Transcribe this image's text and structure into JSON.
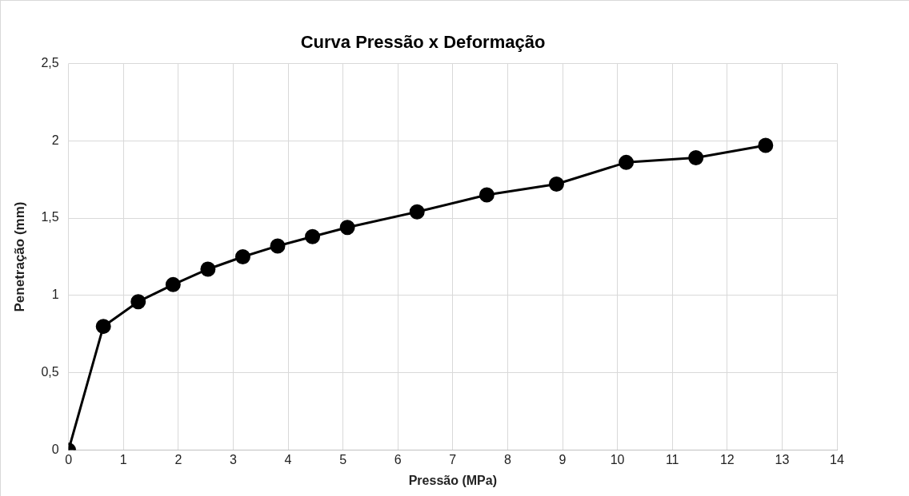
{
  "chart_data": {
    "type": "line",
    "title": "Curva Pressão x Deformação",
    "xlabel": "Pressão (MPa)",
    "ylabel": "Penetração (mm)",
    "x": [
      0,
      0.635,
      1.27,
      1.905,
      2.54,
      3.175,
      3.81,
      4.445,
      5.08,
      6.35,
      7.62,
      8.89,
      10.16,
      11.43,
      12.7
    ],
    "series": [
      {
        "color": "#000000",
        "values": [
          0,
          0.8,
          0.96,
          1.07,
          1.17,
          1.25,
          1.32,
          1.38,
          1.44,
          1.54,
          1.65,
          1.72,
          1.86,
          1.89,
          1.97
        ]
      }
    ],
    "xlim": [
      0,
      14
    ],
    "xticks": [
      0,
      1,
      2,
      3,
      4,
      5,
      6,
      7,
      8,
      9,
      10,
      11,
      12,
      13,
      14
    ],
    "ylim": [
      0,
      2.5
    ],
    "yticks": [
      {
        "value": 0,
        "label": "0"
      },
      {
        "value": 0.5,
        "label": "0,5"
      },
      {
        "value": 1,
        "label": "1"
      },
      {
        "value": 1.5,
        "label": "1,5"
      },
      {
        "value": 2,
        "label": "2"
      },
      {
        "value": 2.5,
        "label": "2,5"
      }
    ],
    "grid": true,
    "legend": false,
    "marker": "circle",
    "line_style": "solid"
  }
}
